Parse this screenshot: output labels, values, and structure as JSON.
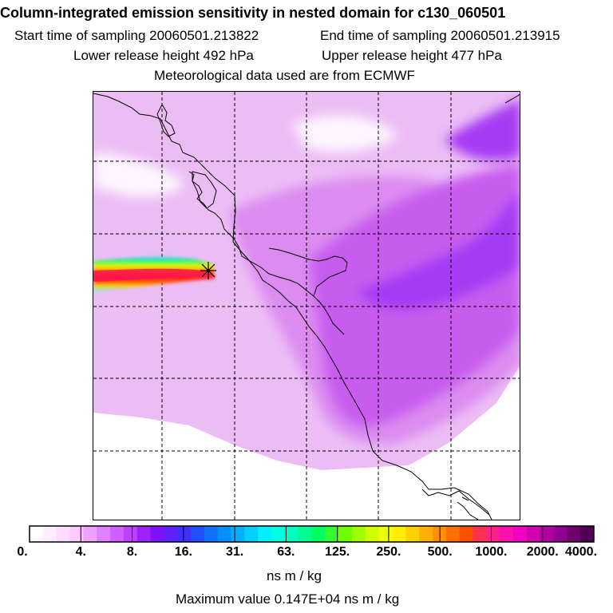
{
  "header": {
    "title": "Column-integrated emission sensitivity in nested domain for c130_060501",
    "start_time": "Start time of sampling 20060501.213822",
    "end_time": "End time of sampling 20060501.213915",
    "lower_height": "Lower release height  492 hPa",
    "upper_height": "Upper release height  477 hPa",
    "met_source": "Meteorological data used are from ECMWF"
  },
  "legend": {
    "tick_labels": [
      "0.",
      "4.",
      "8.",
      "16.",
      "31.",
      "63.",
      "125.",
      "250.",
      "500.",
      "1000.",
      "2000.",
      "4000."
    ],
    "units": "ns m / kg",
    "max_value": "Maximum value  0.147E+04 ns m / kg",
    "colors": [
      "#ffffff",
      "#ffeeff",
      "#ffdcff",
      "#ffc8ff",
      "#f0a0ff",
      "#e080ff",
      "#d060ff",
      "#c040ff",
      "#a020ff",
      "#8010ff",
      "#6020ff",
      "#4030ff",
      "#2050ff",
      "#1070ff",
      "#0090ff",
      "#00b0ff",
      "#00d0ff",
      "#00f0ff",
      "#00ffe0",
      "#00ffc0",
      "#00ff90",
      "#00ff60",
      "#30ff30",
      "#70ff00",
      "#a0ff00",
      "#d0ff00",
      "#f0ff00",
      "#ffee00",
      "#ffd000",
      "#ffb000",
      "#ff9000",
      "#ff7000",
      "#ff5000",
      "#ff3050",
      "#ff2090",
      "#ff10b0",
      "#f000c0",
      "#d000b0",
      "#b000a0",
      "#900090",
      "#700070",
      "#500050"
    ]
  },
  "map": {
    "colors": {
      "light": "#ecbdf5",
      "mid": "#dc8cf0",
      "strong": "#c85cef",
      "deep": "#a53af4",
      "coast": "#000000",
      "grid": "#000000"
    },
    "release_marker": "asterisk"
  }
}
